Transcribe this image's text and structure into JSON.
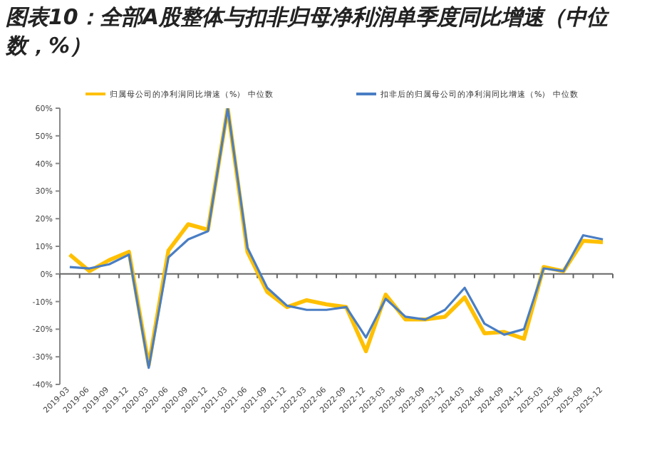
{
  "chart_data": {
    "type": "line",
    "title": "图表10：全部A股整体与扣非归母净利润单季度同比增速（中位数，%）",
    "categories": [
      "2019-03",
      "2019-06",
      "2019-09",
      "2019-12",
      "2020-03",
      "2020-06",
      "2020-09",
      "2020-12",
      "2021-03",
      "2021-06",
      "2021-09",
      "2021-12",
      "2022-03",
      "2022-06",
      "2022-09",
      "2022-12",
      "2023-03",
      "2023-06",
      "2023-09",
      "2023-12",
      "2024-03",
      "2024-06",
      "2024-09",
      "2024-12",
      "2025-03",
      "2025-06",
      "2025-09",
      "2025-12"
    ],
    "series": [
      {
        "name": "归属母公司的净利润同比增速（%） 中位数",
        "color": "#ffc000",
        "values": [
          7,
          1,
          5,
          8,
          -33,
          8.5,
          18,
          16,
          60,
          8,
          -6.5,
          -12,
          -9.5,
          -11,
          -12,
          -28,
          -7.5,
          -16.5,
          -16.5,
          -15.5,
          -8.5,
          -21.5,
          -21,
          -23.5,
          2.5,
          1,
          12,
          11.5
        ]
      },
      {
        "name": "扣非后的归属母公司的净利润同比增速（%） 中位数",
        "color": "#4a7ec4",
        "values": [
          2.5,
          2,
          3.5,
          7,
          -34,
          6,
          12.5,
          15.5,
          60,
          9.5,
          -5,
          -11.5,
          -13,
          -13,
          -12,
          -23,
          -9,
          -15.5,
          -16.5,
          -13,
          -5,
          -18,
          -22,
          -20,
          2,
          1,
          14,
          12.5
        ]
      }
    ],
    "ylim": [
      -40,
      60
    ],
    "yticks": [
      {
        "value": -40,
        "label": "-40%"
      },
      {
        "value": -30,
        "label": "-30%"
      },
      {
        "value": -20,
        "label": "-20%"
      },
      {
        "value": -10,
        "label": "-10%"
      },
      {
        "value": 0,
        "label": "0%"
      },
      {
        "value": 10,
        "label": "10%"
      },
      {
        "value": 20,
        "label": "20%"
      },
      {
        "value": 30,
        "label": "30%"
      },
      {
        "value": 40,
        "label": "40%"
      },
      {
        "value": 50,
        "label": "50%"
      },
      {
        "value": 60,
        "label": "60%"
      }
    ],
    "legend": "top"
  }
}
